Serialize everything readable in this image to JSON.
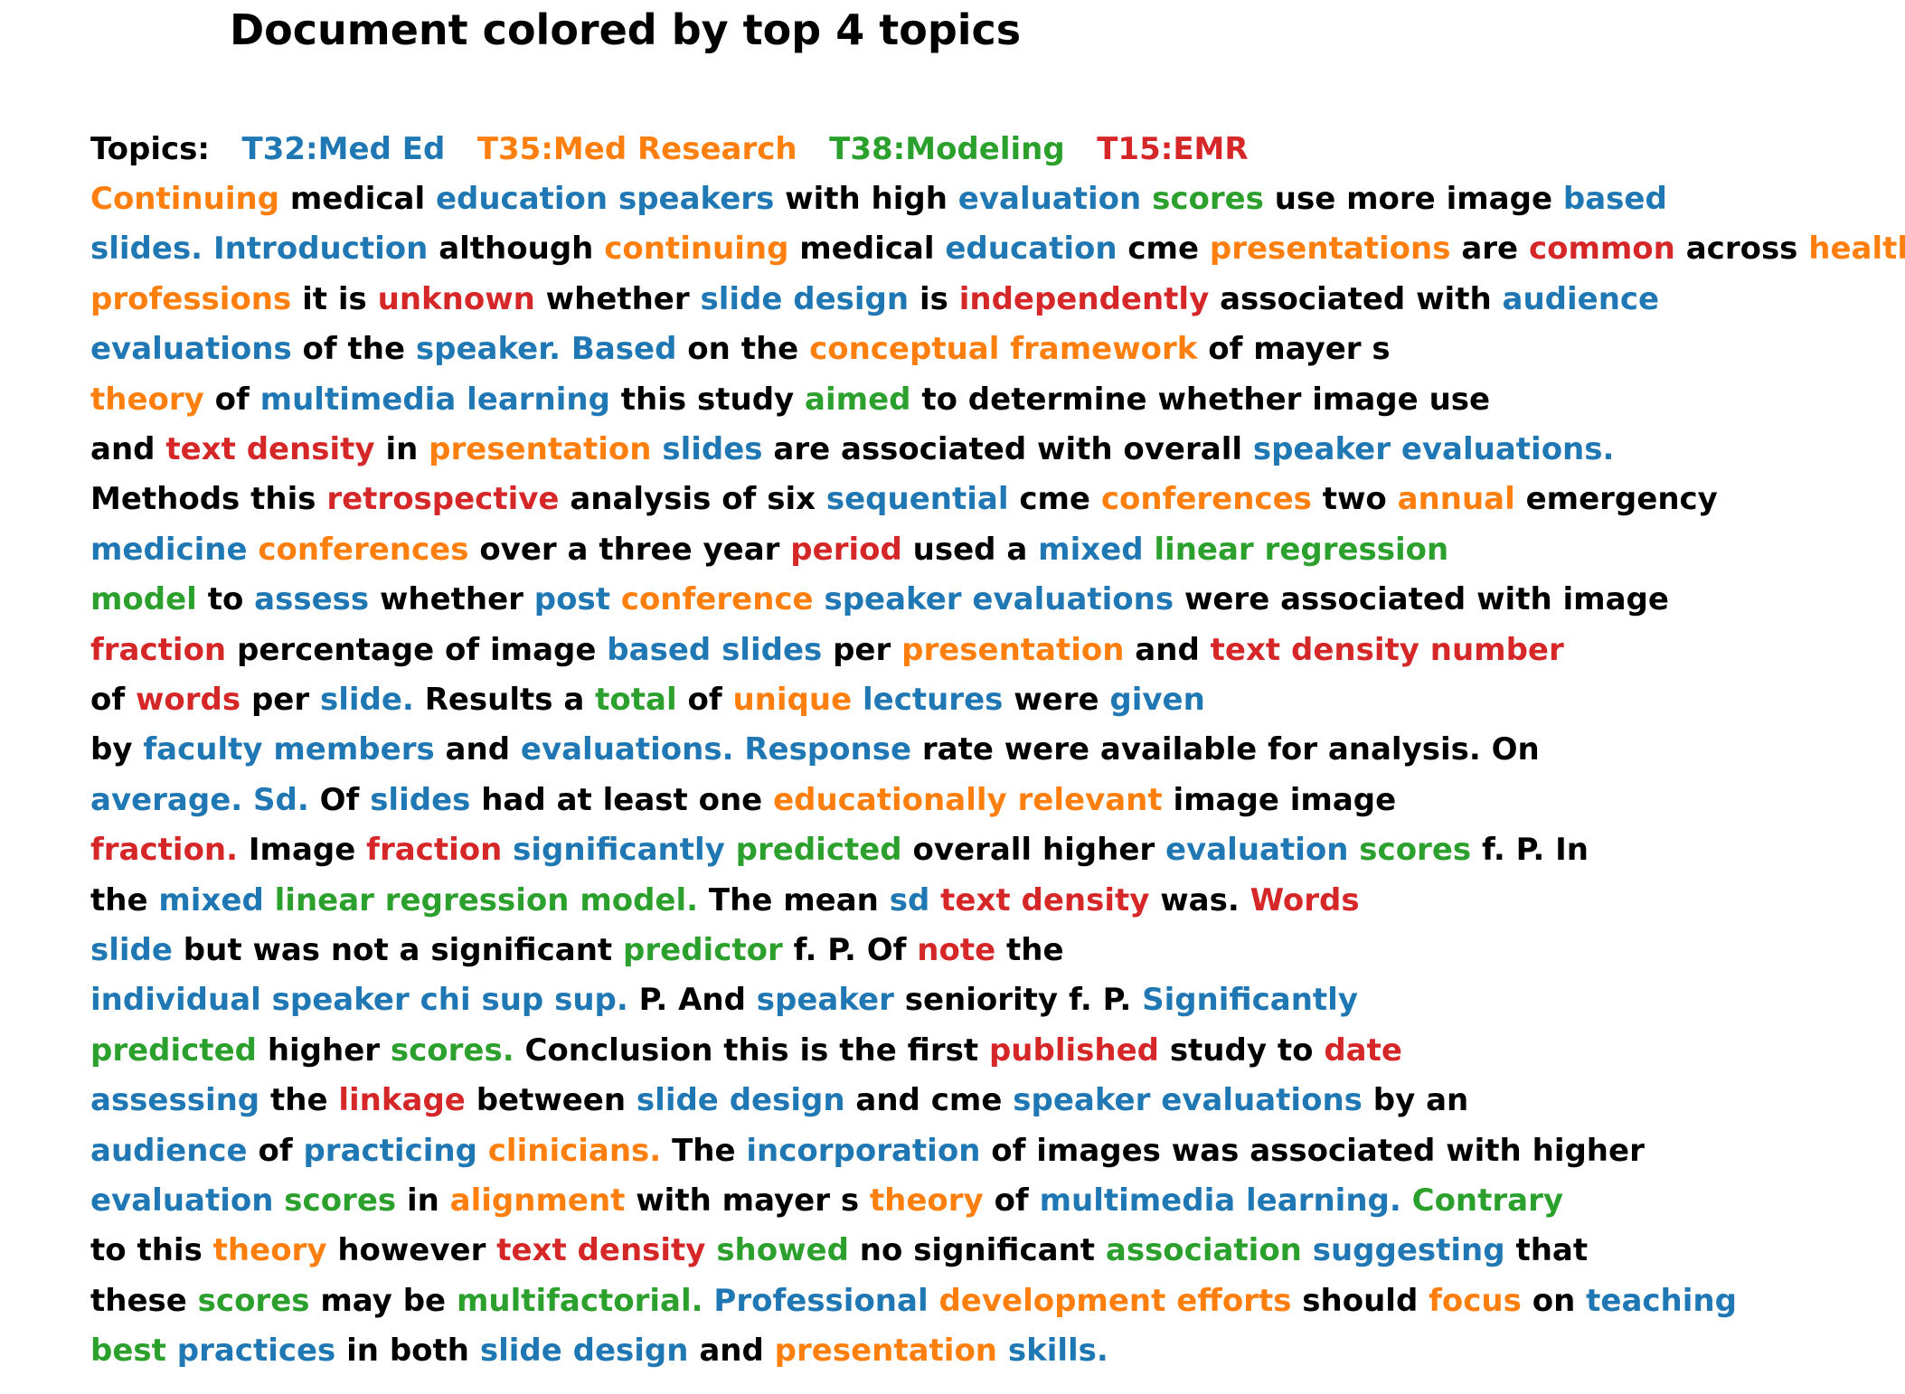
{
  "title": "Document colored by top 4 topics",
  "colors": {
    "plain": "#000000",
    "T32": "#1f77b4",
    "T35": "#ff7f0e",
    "T38": "#2ca02c",
    "T15": "#d62728"
  },
  "topics_label": "Topics:",
  "topics": [
    {
      "id": "T32",
      "label": "T32:Med Ed"
    },
    {
      "id": "T35",
      "label": "T35:Med Research"
    },
    {
      "id": "T38",
      "label": "T38:Modeling"
    },
    {
      "id": "T15",
      "label": "T15:EMR"
    }
  ],
  "lines": [
    [
      [
        "Continuing",
        "T35"
      ],
      [
        "medical",
        ""
      ],
      [
        "education",
        "T32"
      ],
      [
        "speakers",
        "T32"
      ],
      [
        "with",
        ""
      ],
      [
        "high",
        ""
      ],
      [
        "evaluation",
        "T32"
      ],
      [
        "scores",
        "T38"
      ],
      [
        "use",
        ""
      ],
      [
        "more",
        ""
      ],
      [
        "image",
        ""
      ],
      [
        "based",
        "T32"
      ]
    ],
    [
      [
        "slides.",
        "T32"
      ],
      [
        "Introduction",
        "T32"
      ],
      [
        "although",
        ""
      ],
      [
        "continuing",
        "T35"
      ],
      [
        "medical",
        ""
      ],
      [
        "education",
        "T32"
      ],
      [
        "cme",
        ""
      ],
      [
        "presentations",
        "T35"
      ],
      [
        "are",
        ""
      ],
      [
        "common",
        "T15"
      ],
      [
        "across",
        ""
      ],
      [
        "health",
        "T35"
      ]
    ],
    [
      [
        "professions",
        "T35"
      ],
      [
        "it",
        ""
      ],
      [
        "is",
        ""
      ],
      [
        "unknown",
        "T15"
      ],
      [
        "whether",
        ""
      ],
      [
        "slide",
        "T32"
      ],
      [
        "design",
        "T32"
      ],
      [
        "is",
        ""
      ],
      [
        "independently",
        "T15"
      ],
      [
        "associated",
        ""
      ],
      [
        "with",
        ""
      ],
      [
        "audience",
        "T32"
      ]
    ],
    [
      [
        "evaluations",
        "T32"
      ],
      [
        "of",
        ""
      ],
      [
        "the",
        ""
      ],
      [
        "speaker.",
        "T32"
      ],
      [
        "Based",
        "T32"
      ],
      [
        "on",
        ""
      ],
      [
        "the",
        ""
      ],
      [
        "conceptual",
        "T35"
      ],
      [
        "framework",
        "T35"
      ],
      [
        "of",
        ""
      ],
      [
        "mayer",
        ""
      ],
      [
        "s",
        ""
      ]
    ],
    [
      [
        "theory",
        "T35"
      ],
      [
        "of",
        ""
      ],
      [
        "multimedia",
        "T32"
      ],
      [
        "learning",
        "T32"
      ],
      [
        "this",
        ""
      ],
      [
        "study",
        ""
      ],
      [
        "aimed",
        "T38"
      ],
      [
        "to",
        ""
      ],
      [
        "determine",
        ""
      ],
      [
        "whether",
        ""
      ],
      [
        "image",
        ""
      ],
      [
        "use",
        ""
      ]
    ],
    [
      [
        "and",
        ""
      ],
      [
        "text",
        "T15"
      ],
      [
        "density",
        "T15"
      ],
      [
        "in",
        ""
      ],
      [
        "presentation",
        "T35"
      ],
      [
        "slides",
        "T32"
      ],
      [
        "are",
        ""
      ],
      [
        "associated",
        ""
      ],
      [
        "with",
        ""
      ],
      [
        "overall",
        ""
      ],
      [
        "speaker",
        "T32"
      ],
      [
        "evaluations.",
        "T32"
      ]
    ],
    [
      [
        "Methods",
        ""
      ],
      [
        "this",
        ""
      ],
      [
        "retrospective",
        "T15"
      ],
      [
        "analysis",
        ""
      ],
      [
        "of",
        ""
      ],
      [
        "six",
        ""
      ],
      [
        "sequential",
        "T32"
      ],
      [
        "cme",
        ""
      ],
      [
        "conferences",
        "T35"
      ],
      [
        "two",
        ""
      ],
      [
        "annual",
        "T35"
      ],
      [
        "emergency",
        ""
      ]
    ],
    [
      [
        "medicine",
        "T32"
      ],
      [
        "conferences",
        "T35"
      ],
      [
        "over",
        ""
      ],
      [
        "a",
        ""
      ],
      [
        "three",
        ""
      ],
      [
        "year",
        ""
      ],
      [
        "period",
        "T15"
      ],
      [
        "used",
        ""
      ],
      [
        "a",
        ""
      ],
      [
        "mixed",
        "T32"
      ],
      [
        "linear",
        "T38"
      ],
      [
        "regression",
        "T38"
      ]
    ],
    [
      [
        "model",
        "T38"
      ],
      [
        "to",
        ""
      ],
      [
        "assess",
        "T32"
      ],
      [
        "whether",
        ""
      ],
      [
        "post",
        "T32"
      ],
      [
        "conference",
        "T35"
      ],
      [
        "speaker",
        "T32"
      ],
      [
        "evaluations",
        "T32"
      ],
      [
        "were",
        ""
      ],
      [
        "associated",
        ""
      ],
      [
        "with",
        ""
      ],
      [
        "image",
        ""
      ]
    ],
    [
      [
        "fraction",
        "T15"
      ],
      [
        "percentage",
        ""
      ],
      [
        "of",
        ""
      ],
      [
        "image",
        ""
      ],
      [
        "based",
        "T32"
      ],
      [
        "slides",
        "T32"
      ],
      [
        "per",
        ""
      ],
      [
        "presentation",
        "T35"
      ],
      [
        "and",
        ""
      ],
      [
        "text",
        "T15"
      ],
      [
        "density",
        "T15"
      ],
      [
        "number",
        "T15"
      ]
    ],
    [
      [
        "of",
        ""
      ],
      [
        "words",
        "T15"
      ],
      [
        "per",
        ""
      ],
      [
        "slide.",
        "T32"
      ],
      [
        "Results",
        ""
      ],
      [
        "a",
        ""
      ],
      [
        "total",
        "T38"
      ],
      [
        "of",
        ""
      ],
      [
        "unique",
        "T35"
      ],
      [
        "lectures",
        "T32"
      ],
      [
        "were",
        ""
      ],
      [
        "given",
        "T32"
      ]
    ],
    [
      [
        "by",
        ""
      ],
      [
        "faculty",
        "T32"
      ],
      [
        "members",
        "T32"
      ],
      [
        "and",
        ""
      ],
      [
        "evaluations.",
        "T32"
      ],
      [
        "Response",
        "T32"
      ],
      [
        "rate",
        ""
      ],
      [
        "were",
        ""
      ],
      [
        "available",
        ""
      ],
      [
        "for",
        ""
      ],
      [
        "analysis.",
        ""
      ],
      [
        "On",
        ""
      ]
    ],
    [
      [
        "average.",
        "T32"
      ],
      [
        "Sd.",
        "T32"
      ],
      [
        "Of",
        ""
      ],
      [
        "slides",
        "T32"
      ],
      [
        "had",
        ""
      ],
      [
        "at",
        ""
      ],
      [
        "least",
        ""
      ],
      [
        "one",
        ""
      ],
      [
        "educationally",
        "T35"
      ],
      [
        "relevant",
        "T35"
      ],
      [
        "image",
        ""
      ],
      [
        "image",
        ""
      ]
    ],
    [
      [
        "fraction.",
        "T15"
      ],
      [
        "Image",
        ""
      ],
      [
        "fraction",
        "T15"
      ],
      [
        "significantly",
        "T32"
      ],
      [
        "predicted",
        "T38"
      ],
      [
        "overall",
        ""
      ],
      [
        "higher",
        ""
      ],
      [
        "evaluation",
        "T32"
      ],
      [
        "scores",
        "T38"
      ],
      [
        "f.",
        ""
      ],
      [
        "P.",
        ""
      ],
      [
        "In",
        ""
      ]
    ],
    [
      [
        "the",
        ""
      ],
      [
        "mixed",
        "T32"
      ],
      [
        "linear",
        "T38"
      ],
      [
        "regression",
        "T38"
      ],
      [
        "model.",
        "T38"
      ],
      [
        "The",
        ""
      ],
      [
        "mean",
        ""
      ],
      [
        "sd",
        "T32"
      ],
      [
        "text",
        "T15"
      ],
      [
        "density",
        "T15"
      ],
      [
        "was.",
        ""
      ],
      [
        "Words",
        "T15"
      ]
    ],
    [
      [
        "slide",
        "T32"
      ],
      [
        "but",
        ""
      ],
      [
        "was",
        ""
      ],
      [
        "not",
        ""
      ],
      [
        "a",
        ""
      ],
      [
        "significant",
        ""
      ],
      [
        "predictor",
        "T38"
      ],
      [
        "f.",
        ""
      ],
      [
        "P.",
        ""
      ],
      [
        "Of",
        ""
      ],
      [
        "note",
        "T15"
      ],
      [
        "the",
        ""
      ]
    ],
    [
      [
        "individual",
        "T32"
      ],
      [
        "speaker",
        "T32"
      ],
      [
        "chi",
        "T32"
      ],
      [
        "sup",
        "T32"
      ],
      [
        "sup.",
        "T32"
      ],
      [
        "P.",
        ""
      ],
      [
        "And",
        ""
      ],
      [
        "speaker",
        "T32"
      ],
      [
        "seniority",
        ""
      ],
      [
        "f.",
        ""
      ],
      [
        "P.",
        ""
      ],
      [
        "Significantly",
        "T32"
      ]
    ],
    [
      [
        "predicted",
        "T38"
      ],
      [
        "higher",
        ""
      ],
      [
        "scores.",
        "T38"
      ],
      [
        "Conclusion",
        ""
      ],
      [
        "this",
        ""
      ],
      [
        "is",
        ""
      ],
      [
        "the",
        ""
      ],
      [
        "first",
        ""
      ],
      [
        "published",
        "T15"
      ],
      [
        "study",
        ""
      ],
      [
        "to",
        ""
      ],
      [
        "date",
        "T15"
      ]
    ],
    [
      [
        "assessing",
        "T32"
      ],
      [
        "the",
        ""
      ],
      [
        "linkage",
        "T15"
      ],
      [
        "between",
        ""
      ],
      [
        "slide",
        "T32"
      ],
      [
        "design",
        "T32"
      ],
      [
        "and",
        ""
      ],
      [
        "cme",
        ""
      ],
      [
        "speaker",
        "T32"
      ],
      [
        "evaluations",
        "T32"
      ],
      [
        "by",
        ""
      ],
      [
        "an",
        ""
      ]
    ],
    [
      [
        "audience",
        "T32"
      ],
      [
        "of",
        ""
      ],
      [
        "practicing",
        "T32"
      ],
      [
        "clinicians.",
        "T35"
      ],
      [
        "The",
        ""
      ],
      [
        "incorporation",
        "T32"
      ],
      [
        "of",
        ""
      ],
      [
        "images",
        ""
      ],
      [
        "was",
        ""
      ],
      [
        "associated",
        ""
      ],
      [
        "with",
        ""
      ],
      [
        "higher",
        ""
      ]
    ],
    [
      [
        "evaluation",
        "T32"
      ],
      [
        "scores",
        "T38"
      ],
      [
        "in",
        ""
      ],
      [
        "alignment",
        "T35"
      ],
      [
        "with",
        ""
      ],
      [
        "mayer",
        ""
      ],
      [
        "s",
        ""
      ],
      [
        "theory",
        "T35"
      ],
      [
        "of",
        ""
      ],
      [
        "multimedia",
        "T32"
      ],
      [
        "learning.",
        "T32"
      ],
      [
        "Contrary",
        "T38"
      ]
    ],
    [
      [
        "to",
        ""
      ],
      [
        "this",
        ""
      ],
      [
        "theory",
        "T35"
      ],
      [
        "however",
        ""
      ],
      [
        "text",
        "T15"
      ],
      [
        "density",
        "T15"
      ],
      [
        "showed",
        "T38"
      ],
      [
        "no",
        ""
      ],
      [
        "significant",
        ""
      ],
      [
        "association",
        "T38"
      ],
      [
        "suggesting",
        "T32"
      ],
      [
        "that",
        ""
      ]
    ],
    [
      [
        "these",
        ""
      ],
      [
        "scores",
        "T38"
      ],
      [
        "may",
        ""
      ],
      [
        "be",
        ""
      ],
      [
        "multifactorial.",
        "T38"
      ],
      [
        "Professional",
        "T32"
      ],
      [
        "development",
        "T35"
      ],
      [
        "efforts",
        "T35"
      ],
      [
        "should",
        ""
      ],
      [
        "focus",
        "T35"
      ],
      [
        "on",
        ""
      ],
      [
        "teaching",
        "T32"
      ]
    ],
    [
      [
        "best",
        "T38"
      ],
      [
        "practices",
        "T32"
      ],
      [
        "in",
        ""
      ],
      [
        "both",
        ""
      ],
      [
        "slide",
        "T32"
      ],
      [
        "design",
        "T32"
      ],
      [
        "and",
        ""
      ],
      [
        "presentation",
        "T35"
      ],
      [
        "skills.",
        "T32"
      ]
    ]
  ]
}
